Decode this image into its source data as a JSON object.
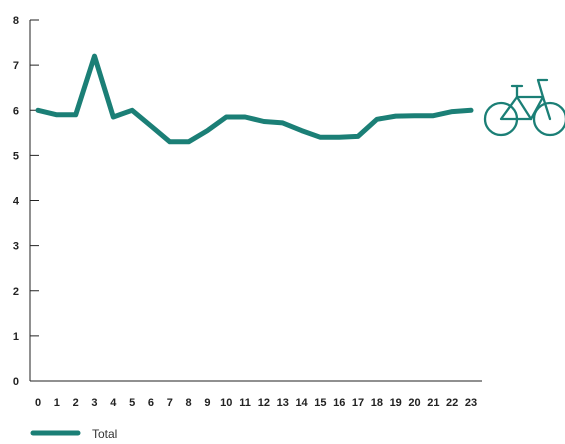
{
  "chart_data": {
    "type": "line",
    "title": "",
    "xlabel": "",
    "ylabel": "",
    "categories": [
      "0",
      "1",
      "2",
      "3",
      "4",
      "5",
      "6",
      "7",
      "8",
      "9",
      "10",
      "11",
      "12",
      "13",
      "14",
      "15",
      "16",
      "17",
      "18",
      "19",
      "20",
      "21",
      "22",
      "23"
    ],
    "y_ticks": [
      "0",
      "1",
      "2",
      "3",
      "4",
      "5",
      "6",
      "7",
      "8"
    ],
    "ylim": [
      0,
      8
    ],
    "grid": false,
    "legend_position": "bottom-left",
    "series": [
      {
        "name": "Total",
        "color": "#1b7f76",
        "values": [
          6.0,
          5.9,
          5.9,
          7.2,
          5.85,
          6.0,
          5.65,
          5.3,
          5.3,
          5.55,
          5.85,
          5.85,
          5.75,
          5.72,
          5.55,
          5.4,
          5.4,
          5.42,
          5.8,
          5.87,
          5.88,
          5.88,
          5.97,
          6.0
        ]
      }
    ],
    "end_icon": "bicycle-icon"
  }
}
